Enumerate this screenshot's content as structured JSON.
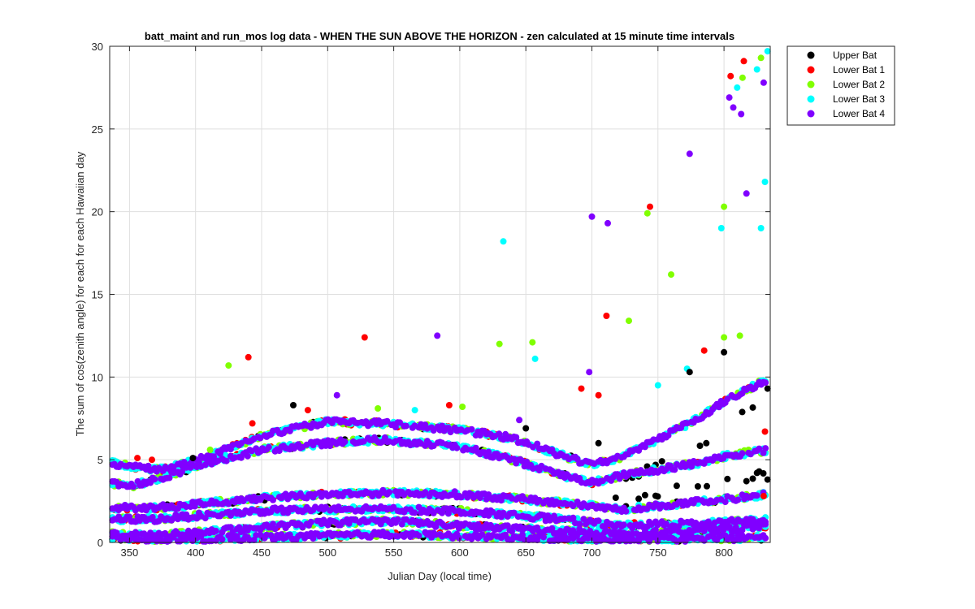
{
  "chart_data": {
    "type": "scatter",
    "title": "batt_maint and run_mos log data - WHEN THE SUN ABOVE THE HORIZON - zen calculated at 15 minute time intervals",
    "xlabel": "Julian Day (local time)",
    "ylabel": "The sum of cos(zenith angle) for each for each Hawaiian day",
    "xlim": [
      335,
      835
    ],
    "ylim": [
      0,
      30
    ],
    "xticks": [
      350,
      400,
      450,
      500,
      550,
      600,
      650,
      700,
      750,
      800
    ],
    "yticks": [
      0,
      5,
      10,
      15,
      20,
      25,
      30
    ],
    "grid": true,
    "legend_position": "outside-top-right",
    "series": [
      {
        "name": "Upper Bat",
        "color": "#000000"
      },
      {
        "name": "Lower Bat 1",
        "color": "#ff0000"
      },
      {
        "name": "Lower Bat 2",
        "color": "#80ff00"
      },
      {
        "name": "Lower Bat 3",
        "color": "#00ffff"
      },
      {
        "name": "Lower Bat 4",
        "color": "#8000ff"
      }
    ],
    "bands": [
      {
        "x": [
          337,
          350,
          370,
          400,
          450,
          500,
          540,
          600,
          640,
          680,
          700,
          720,
          750,
          780,
          800,
          833
        ],
        "y": [
          4.8,
          4.6,
          4.4,
          4.9,
          6.5,
          7.3,
          7.2,
          6.8,
          6.3,
          5.2,
          4.7,
          5.1,
          6.2,
          7.5,
          8.5,
          9.9
        ]
      },
      {
        "x": [
          337,
          350,
          370,
          400,
          450,
          500,
          540,
          600,
          640,
          680,
          700,
          720,
          750,
          780,
          800,
          833
        ],
        "y": [
          3.6,
          3.4,
          3.8,
          4.6,
          5.6,
          6.0,
          6.2,
          5.8,
          5.0,
          4.0,
          3.6,
          4.0,
          4.4,
          4.8,
          5.2,
          5.6
        ]
      },
      {
        "x": [
          337,
          370,
          400,
          450,
          500,
          550,
          600,
          650,
          700,
          720,
          750,
          800,
          833
        ],
        "y": [
          2.1,
          2.1,
          2.3,
          2.7,
          2.9,
          3.0,
          2.9,
          2.6,
          2.2,
          2.0,
          2.2,
          2.6,
          2.9
        ]
      },
      {
        "x": [
          337,
          370,
          400,
          450,
          500,
          550,
          600,
          650,
          700,
          720,
          750,
          800,
          833
        ],
        "y": [
          1.4,
          1.4,
          1.6,
          1.9,
          2.0,
          2.0,
          1.9,
          1.6,
          1.2,
          1.0,
          1.1,
          1.2,
          1.4
        ]
      },
      {
        "x": [
          337,
          370,
          400,
          450,
          500,
          550,
          600,
          650,
          700,
          720,
          750,
          800,
          833
        ],
        "y": [
          0.5,
          0.4,
          0.6,
          0.9,
          1.2,
          1.3,
          1.0,
          0.8,
          0.6,
          0.5,
          0.6,
          0.8,
          1.0
        ]
      },
      {
        "x": [
          337,
          370,
          400,
          450,
          500,
          550,
          600,
          650,
          700,
          720,
          750,
          800,
          833
        ],
        "y": [
          0.2,
          0.15,
          0.2,
          0.3,
          0.4,
          0.5,
          0.4,
          0.3,
          0.2,
          0.15,
          0.2,
          0.25,
          0.3
        ]
      }
    ],
    "scatter_points": [
      {
        "series": 2,
        "x": 425,
        "y": 10.7
      },
      {
        "series": 1,
        "x": 440,
        "y": 11.2
      },
      {
        "series": 1,
        "x": 528,
        "y": 12.4
      },
      {
        "series": 4,
        "x": 583,
        "y": 12.5
      },
      {
        "series": 2,
        "x": 630,
        "y": 12.0
      },
      {
        "series": 2,
        "x": 655,
        "y": 12.1
      },
      {
        "series": 3,
        "x": 657,
        "y": 11.1
      },
      {
        "series": 3,
        "x": 633,
        "y": 18.2
      },
      {
        "series": 4,
        "x": 700,
        "y": 19.7
      },
      {
        "series": 4,
        "x": 712,
        "y": 19.3
      },
      {
        "series": 1,
        "x": 711,
        "y": 13.7
      },
      {
        "series": 2,
        "x": 728,
        "y": 13.4
      },
      {
        "series": 1,
        "x": 744,
        "y": 20.3
      },
      {
        "series": 2,
        "x": 742,
        "y": 19.9
      },
      {
        "series": 2,
        "x": 760,
        "y": 16.2
      },
      {
        "series": 4,
        "x": 774,
        "y": 23.5
      },
      {
        "series": 0,
        "x": 800,
        "y": 11.5
      },
      {
        "series": 1,
        "x": 785,
        "y": 11.6
      },
      {
        "series": 2,
        "x": 800,
        "y": 12.4
      },
      {
        "series": 2,
        "x": 812,
        "y": 12.5
      },
      {
        "series": 2,
        "x": 800,
        "y": 20.3
      },
      {
        "series": 3,
        "x": 798,
        "y": 19.0
      },
      {
        "series": 4,
        "x": 804,
        "y": 26.9
      },
      {
        "series": 1,
        "x": 805,
        "y": 28.2
      },
      {
        "series": 1,
        "x": 815,
        "y": 29.1
      },
      {
        "series": 2,
        "x": 814,
        "y": 28.1
      },
      {
        "series": 2,
        "x": 828,
        "y": 29.3
      },
      {
        "series": 3,
        "x": 833,
        "y": 29.7
      },
      {
        "series": 3,
        "x": 825,
        "y": 28.6
      },
      {
        "series": 3,
        "x": 810,
        "y": 27.5
      },
      {
        "series": 4,
        "x": 807,
        "y": 26.3
      },
      {
        "series": 4,
        "x": 813,
        "y": 25.9
      },
      {
        "series": 4,
        "x": 830,
        "y": 27.8
      },
      {
        "series": 4,
        "x": 817,
        "y": 21.1
      },
      {
        "series": 3,
        "x": 831,
        "y": 21.8
      },
      {
        "series": 3,
        "x": 828,
        "y": 19.0
      },
      {
        "series": 4,
        "x": 698,
        "y": 10.3
      },
      {
        "series": 3,
        "x": 750,
        "y": 9.5
      },
      {
        "series": 1,
        "x": 692,
        "y": 9.3
      },
      {
        "series": 1,
        "x": 705,
        "y": 8.9
      },
      {
        "series": 4,
        "x": 507,
        "y": 8.9
      },
      {
        "series": 0,
        "x": 474,
        "y": 8.3
      },
      {
        "series": 1,
        "x": 485,
        "y": 8.0
      },
      {
        "series": 2,
        "x": 538,
        "y": 8.1
      },
      {
        "series": 1,
        "x": 592,
        "y": 8.3
      },
      {
        "series": 2,
        "x": 602,
        "y": 8.2
      },
      {
        "series": 3,
        "x": 566,
        "y": 8.0
      },
      {
        "series": 4,
        "x": 645,
        "y": 7.4
      },
      {
        "series": 0,
        "x": 650,
        "y": 6.9
      },
      {
        "series": 1,
        "x": 443,
        "y": 7.2
      },
      {
        "series": 1,
        "x": 356,
        "y": 5.1
      },
      {
        "series": 1,
        "x": 367,
        "y": 5.0
      },
      {
        "series": 0,
        "x": 398,
        "y": 5.1
      },
      {
        "series": 2,
        "x": 411,
        "y": 5.6
      },
      {
        "series": 0,
        "x": 705,
        "y": 6.0
      },
      {
        "series": 3,
        "x": 772,
        "y": 10.5
      },
      {
        "series": 0,
        "x": 774,
        "y": 10.3
      },
      {
        "series": 0,
        "x": 718,
        "y": 2.7
      },
      {
        "series": 0,
        "x": 787,
        "y": 3.4
      },
      {
        "series": 0,
        "x": 817,
        "y": 3.7
      },
      {
        "series": 0,
        "x": 833,
        "y": 3.8
      },
      {
        "series": 1,
        "x": 830,
        "y": 2.8
      },
      {
        "series": 1,
        "x": 831,
        "y": 6.7
      },
      {
        "series": 0,
        "x": 833,
        "y": 9.3
      }
    ]
  }
}
